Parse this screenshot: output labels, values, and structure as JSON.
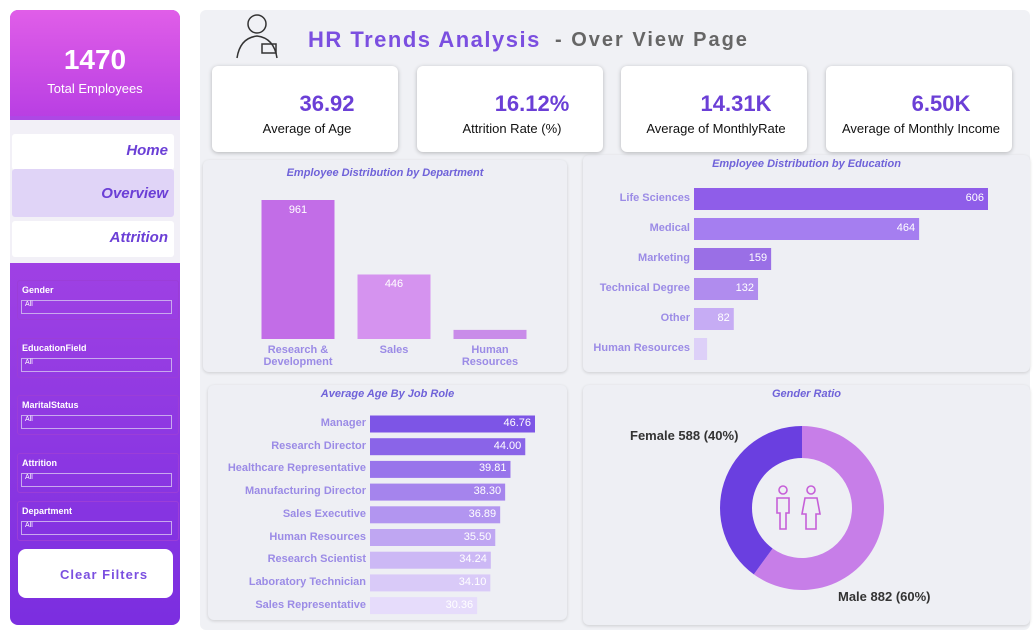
{
  "header": {
    "title": "HR Trends Analysis",
    "subtitle": "- Over View Page"
  },
  "sidebar": {
    "total_value": "1470",
    "total_label": "Total Employees",
    "nav": [
      "Home",
      "Overview",
      "Attrition"
    ],
    "filters": [
      {
        "label": "Gender",
        "value": "All"
      },
      {
        "label": "EducationField",
        "value": "All"
      },
      {
        "label": "MaritalStatus",
        "value": "All"
      },
      {
        "label": "Attrition",
        "value": "All"
      },
      {
        "label": "Department",
        "value": "All"
      }
    ],
    "clear": "Clear Filters"
  },
  "kpis": [
    {
      "value": "36.92",
      "label": "Average of Age"
    },
    {
      "value": "16.12%",
      "label": "Attrition Rate (%)"
    },
    {
      "value": "14.31K",
      "label": "Average of MonthlyRate"
    },
    {
      "value": "6.50K",
      "label": "Average of Monthly Income"
    }
  ],
  "chart_data": [
    {
      "type": "bar",
      "title": "Employee Distribution by Department",
      "categories": [
        "Research & Development",
        "Sales",
        "Human Resources"
      ],
      "values": [
        961,
        446,
        63
      ],
      "colors": [
        "#c26de7",
        "#d593ef",
        "#c98ce9"
      ]
    },
    {
      "type": "hbar",
      "title": "Employee Distribution by Education",
      "categories": [
        "Life Sciences",
        "Medical",
        "Marketing",
        "Technical Degree",
        "Other",
        "Human Resources"
      ],
      "values": [
        606,
        464,
        159,
        132,
        82,
        27
      ],
      "colors": [
        "#8f5de9",
        "#a57ef0",
        "#9a6fe6",
        "#b08cee",
        "#c6acf4",
        "#ddd0f8"
      ]
    },
    {
      "type": "hbar",
      "title": "Average Age By Job Role",
      "categories": [
        "Manager",
        "Research Director",
        "Healthcare Representative",
        "Manufacturing Director",
        "Sales Executive",
        "Human Resources",
        "Research Scientist",
        "Laboratory Technician",
        "Sales Representative"
      ],
      "values": [
        46.76,
        44,
        39.81,
        38.3,
        36.89,
        35.5,
        34.24,
        34.1,
        30.36
      ],
      "value_labels": [
        "46.76",
        "44.00",
        "39.81",
        "38.30",
        "36.89",
        "35.50",
        "34.24",
        "34.10",
        "30.36"
      ],
      "colors": [
        "#7d55e6",
        "#8a64e8",
        "#9874eb",
        "#a584ed",
        "#b295f0",
        "#bfa6f2",
        "#ccb8f5",
        "#d9caf8",
        "#e6dcfb"
      ]
    },
    {
      "type": "donut",
      "title": "Gender Ratio",
      "categories": [
        "Male",
        "Female"
      ],
      "values": [
        882,
        588
      ],
      "value_labels": [
        "Male 882 (60%)",
        "Female 588 (40%)"
      ],
      "colors": [
        "#c77ee8",
        "#6a3fe0"
      ]
    }
  ]
}
